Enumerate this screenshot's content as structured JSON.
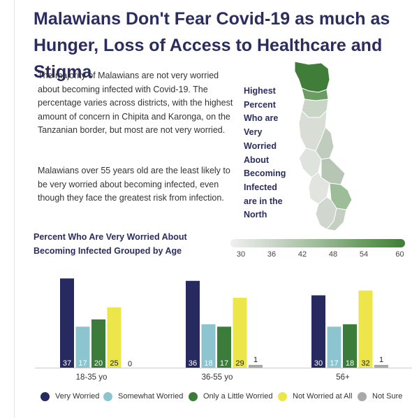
{
  "title": {
    "line1": "Malawians Don't Fear Covid-19 as much as",
    "line2": "Hunger, Loss of Access to Healthcare and Stigma"
  },
  "paragraph1": "The majority of Malawians are not very worried about becoming infected with Covid-19. The percentage varies across districts, with the highest amount of concern in Chipita and Karonga, on the Tanzanian border, but most are not very worried.",
  "paragraph2": "Malawians over 55 years old are the least likely to be very worried about becoming infected, even though they face the greatest risk from infection.",
  "map_caption": [
    "Highest",
    "Percent",
    "Who are",
    "Very",
    "Worried",
    "About",
    "Becoming",
    "Infected",
    "are in the",
    "North"
  ],
  "map_legend": {
    "ticks": [
      "30",
      "36",
      "42",
      "48",
      "54",
      "60"
    ],
    "min": 30,
    "max": 60,
    "color_low": "#eef0ee",
    "color_high": "#3f7d38"
  },
  "chart_data": {
    "type": "bar",
    "title": "Percent Who Are Very Worried About Becoming Infected Grouped by Age",
    "categories": [
      "18-35 yo",
      "36-55 yo",
      "56+"
    ],
    "series": [
      {
        "name": "Very Worried",
        "color": "#272a5e",
        "values": [
          37,
          36,
          30
        ]
      },
      {
        "name": "Somewhat Worried",
        "color": "#8cc5d0",
        "values": [
          17,
          18,
          17
        ]
      },
      {
        "name": "Only a Little Worried",
        "color": "#3c7c3a",
        "values": [
          20,
          17,
          18
        ]
      },
      {
        "name": "Not Worried at All",
        "color": "#ece64a",
        "values": [
          25,
          29,
          32
        ]
      },
      {
        "name": "Not Sure",
        "color": "#a9a9a9",
        "values": [
          0,
          1,
          1
        ]
      }
    ],
    "legend_position": "bottom",
    "grid": false
  }
}
